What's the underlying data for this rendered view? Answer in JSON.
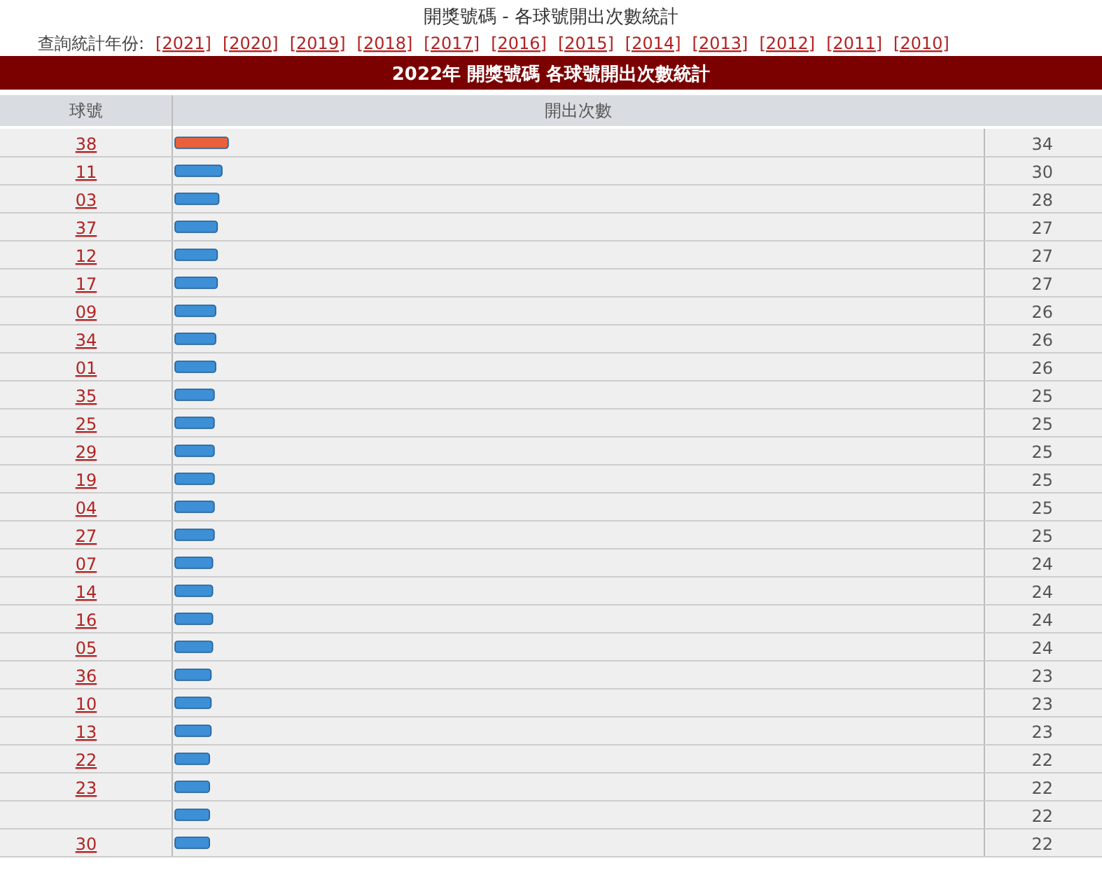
{
  "chart_data": {
    "type": "bar",
    "orientation": "horizontal",
    "title": "開獎號碼 - 各球號開出次數統計",
    "subtitle": "2022年 開獎號碼 各球號開出次數統計",
    "ylabel": "球號",
    "annotations": [
      "開出次數",
      "查詢統計年份:",
      "[2021]",
      "[2020]",
      "[2019]",
      "[2018]",
      "[2017]",
      "[2016]",
      "[2015]",
      "[2014]",
      "[2013]",
      "[2012]",
      "[2011]",
      "[2010]"
    ],
    "categories": [
      "38",
      "11",
      "03",
      "37",
      "12",
      "17",
      "09",
      "34",
      "01",
      "35",
      "25",
      "29",
      "19",
      "04",
      "27",
      "07",
      "14",
      "16",
      "05",
      "36",
      "10",
      "13",
      "22",
      "23",
      null,
      "30"
    ],
    "values": [
      34,
      30,
      28,
      27,
      27,
      27,
      26,
      26,
      26,
      25,
      25,
      25,
      25,
      25,
      25,
      24,
      24,
      24,
      24,
      23,
      23,
      23,
      22,
      22,
      22,
      22
    ],
    "colors": [
      "#e8613c",
      "#3d8fd6",
      "#3d8fd6",
      "#3d8fd6",
      "#3d8fd6",
      "#3d8fd6",
      "#3d8fd6",
      "#3d8fd6",
      "#3d8fd6",
      "#3d8fd6",
      "#3d8fd6",
      "#3d8fd6",
      "#3d8fd6",
      "#3d8fd6",
      "#3d8fd6",
      "#3d8fd6",
      "#3d8fd6",
      "#3d8fd6",
      "#3d8fd6",
      "#3d8fd6",
      "#3d8fd6",
      "#3d8fd6",
      "#3d8fd6",
      "#3d8fd6",
      "#3d8fd6",
      "#3d8fd6"
    ],
    "data_labels": true
  }
}
